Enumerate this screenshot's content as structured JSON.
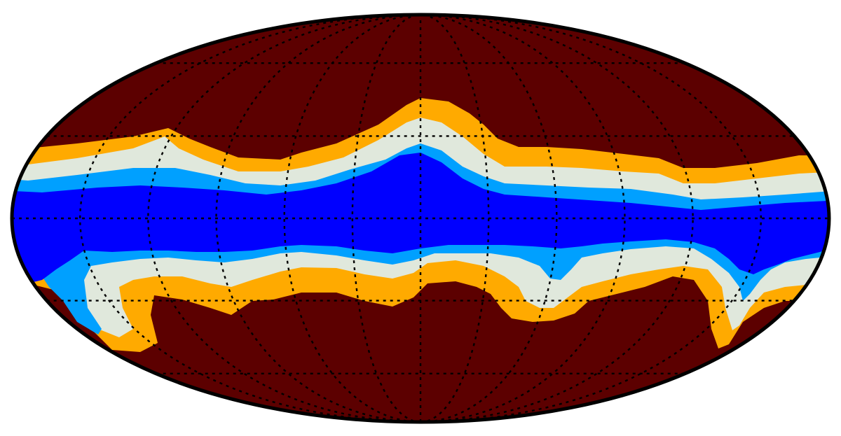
{
  "map": {
    "projection": "mollweide",
    "graticule": {
      "meridian_step_deg": 30,
      "parallel_step_deg": 30,
      "style": "dotted"
    },
    "colors": {
      "background": "#ffffff",
      "outside_band": "#5c0000",
      "outer_band": "#ffaa00",
      "edge_band": "#e0e8dc",
      "inner_band": "#00a0ff",
      "core_band": "#0000ff",
      "outline": "#000000",
      "graticule": "#000000"
    },
    "bands": [
      "outside_band",
      "outer_band",
      "edge_band",
      "inner_band",
      "core_band"
    ]
  }
}
